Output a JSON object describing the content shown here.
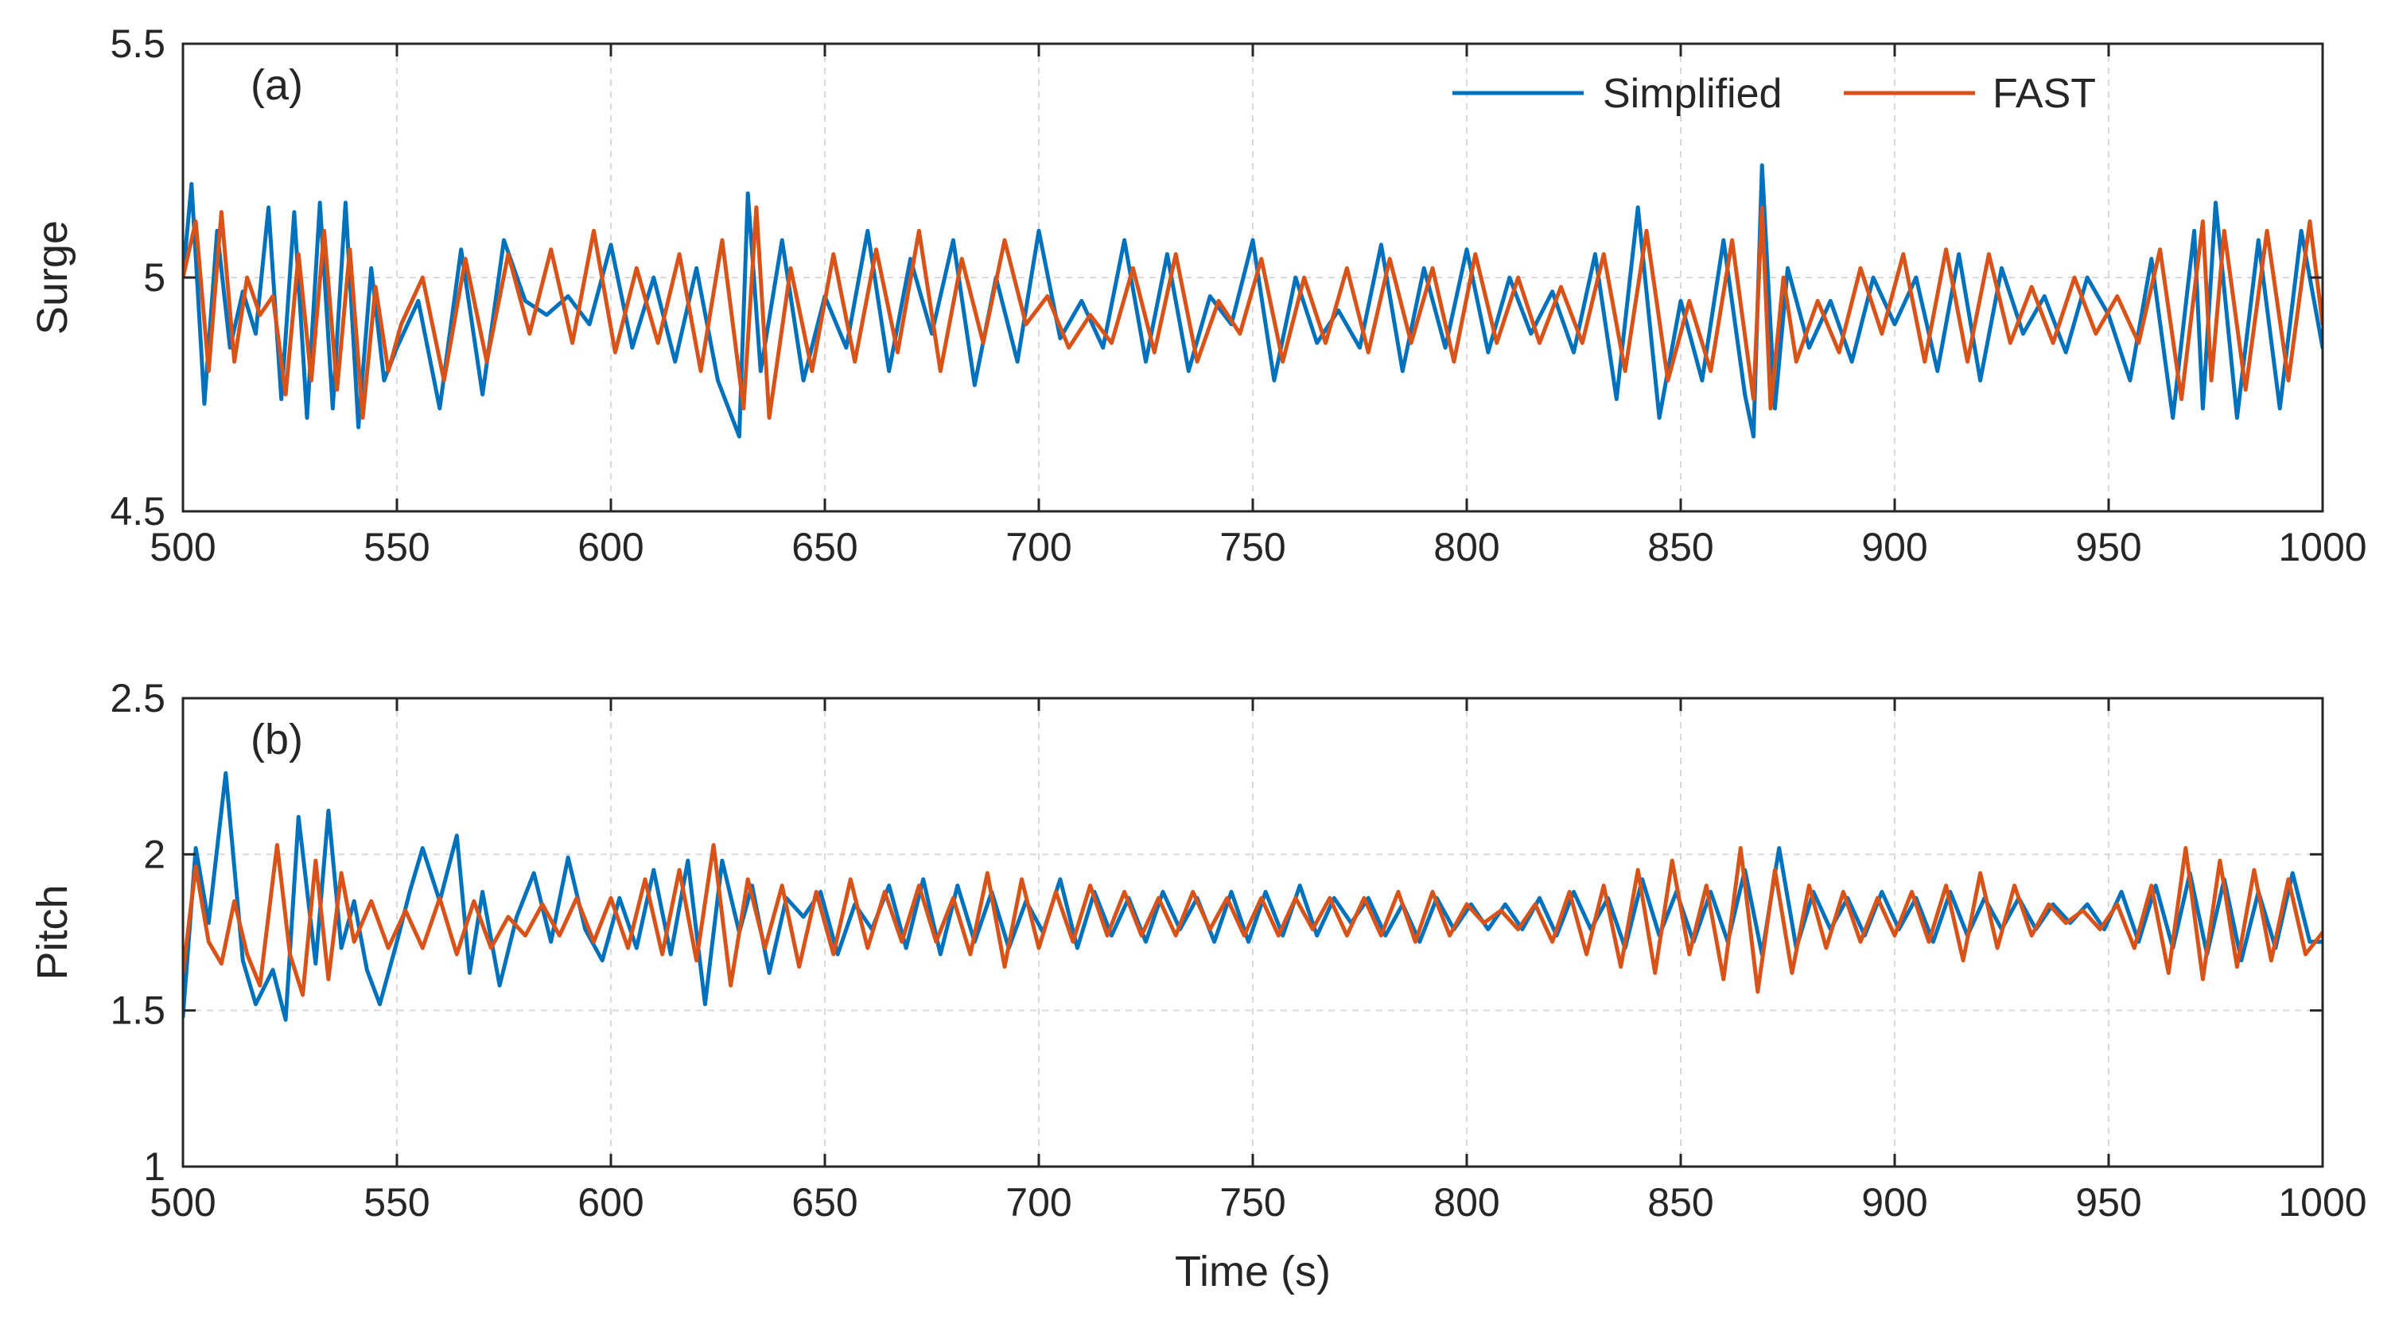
{
  "chart_data": [
    {
      "type": "line",
      "panel_label": "(a)",
      "xlabel": "",
      "ylabel": "Surge",
      "xlim": [
        500,
        1000
      ],
      "ylim": [
        4.5,
        5.5
      ],
      "xticks": [
        500,
        550,
        600,
        650,
        700,
        750,
        800,
        850,
        900,
        950,
        1000
      ],
      "yticks": [
        4.5,
        5,
        5.5
      ],
      "grid": true,
      "legend": {
        "position": "top-right",
        "orientation": "horizontal"
      },
      "series": [
        {
          "name": "Simplified",
          "color": "#0072BD",
          "x": [
            500,
            502,
            505,
            508,
            511,
            514,
            517,
            520,
            523,
            526,
            529,
            532,
            535,
            538,
            541,
            544,
            547,
            550,
            555,
            560,
            565,
            570,
            575,
            580,
            585,
            590,
            595,
            600,
            605,
            610,
            615,
            620,
            625,
            630,
            632,
            635,
            640,
            645,
            650,
            655,
            660,
            665,
            670,
            675,
            680,
            685,
            690,
            695,
            700,
            705,
            710,
            715,
            720,
            725,
            730,
            735,
            740,
            745,
            750,
            755,
            760,
            765,
            770,
            775,
            780,
            785,
            790,
            795,
            800,
            805,
            810,
            815,
            820,
            825,
            830,
            835,
            840,
            845,
            850,
            855,
            860,
            865,
            867,
            869,
            872,
            875,
            880,
            885,
            890,
            895,
            900,
            905,
            910,
            915,
            920,
            925,
            930,
            935,
            940,
            945,
            950,
            955,
            960,
            965,
            970,
            972,
            975,
            980,
            985,
            990,
            995,
            1000
          ],
          "values": [
            5.0,
            5.2,
            4.73,
            5.1,
            4.85,
            4.97,
            4.88,
            5.15,
            4.74,
            5.14,
            4.7,
            5.16,
            4.72,
            5.16,
            4.68,
            5.02,
            4.78,
            4.85,
            4.95,
            4.72,
            5.06,
            4.75,
            5.08,
            4.95,
            4.92,
            4.96,
            4.9,
            5.07,
            4.85,
            5.0,
            4.82,
            5.02,
            4.78,
            4.66,
            5.18,
            4.8,
            5.08,
            4.78,
            4.96,
            4.85,
            5.1,
            4.8,
            5.04,
            4.88,
            5.08,
            4.77,
            5.0,
            4.82,
            5.1,
            4.87,
            4.95,
            4.85,
            5.08,
            4.82,
            5.05,
            4.8,
            4.96,
            4.9,
            5.08,
            4.78,
            5.0,
            4.86,
            4.93,
            4.85,
            5.07,
            4.8,
            5.02,
            4.85,
            5.06,
            4.84,
            5.0,
            4.88,
            4.97,
            4.84,
            5.05,
            4.74,
            5.15,
            4.7,
            4.95,
            4.78,
            5.08,
            4.75,
            4.66,
            5.24,
            4.72,
            5.02,
            4.85,
            4.95,
            4.82,
            5.0,
            4.9,
            5.0,
            4.8,
            5.05,
            4.78,
            5.02,
            4.88,
            4.96,
            4.84,
            5.0,
            4.92,
            4.78,
            5.04,
            4.7,
            5.1,
            4.72,
            5.16,
            4.7,
            5.08,
            4.72,
            5.1,
            4.85
          ]
        },
        {
          "name": "FAST",
          "color": "#D95319",
          "x": [
            500,
            503,
            506,
            509,
            512,
            515,
            518,
            521,
            524,
            527,
            530,
            533,
            536,
            539,
            542,
            545,
            548,
            551,
            556,
            561,
            566,
            571,
            576,
            581,
            586,
            591,
            596,
            601,
            606,
            611,
            616,
            621,
            626,
            631,
            634,
            637,
            642,
            647,
            652,
            657,
            662,
            667,
            672,
            677,
            682,
            687,
            692,
            697,
            702,
            707,
            712,
            717,
            722,
            727,
            732,
            737,
            742,
            747,
            752,
            757,
            762,
            767,
            772,
            777,
            782,
            787,
            792,
            797,
            802,
            807,
            812,
            817,
            822,
            827,
            832,
            837,
            842,
            847,
            852,
            857,
            862,
            867,
            869,
            871,
            874,
            877,
            882,
            887,
            892,
            897,
            902,
            907,
            912,
            917,
            922,
            927,
            932,
            937,
            942,
            947,
            952,
            957,
            962,
            967,
            972,
            974,
            977,
            982,
            987,
            992,
            997,
            1000
          ],
          "values": [
            5.0,
            5.12,
            4.8,
            5.14,
            4.82,
            5.0,
            4.92,
            4.96,
            4.75,
            5.05,
            4.78,
            5.1,
            4.76,
            5.06,
            4.7,
            4.98,
            4.8,
            4.9,
            5.0,
            4.78,
            5.04,
            4.82,
            5.05,
            4.88,
            5.06,
            4.86,
            5.1,
            4.84,
            5.02,
            4.86,
            5.05,
            4.8,
            5.08,
            4.72,
            5.15,
            4.7,
            5.02,
            4.8,
            5.05,
            4.82,
            5.06,
            4.84,
            5.1,
            4.8,
            5.04,
            4.86,
            5.08,
            4.9,
            4.96,
            4.85,
            4.92,
            4.86,
            5.02,
            4.84,
            5.05,
            4.82,
            4.95,
            4.88,
            5.04,
            4.82,
            5.0,
            4.86,
            5.02,
            4.84,
            5.04,
            4.86,
            5.02,
            4.82,
            5.05,
            4.86,
            5.0,
            4.86,
            4.98,
            4.86,
            5.05,
            4.8,
            5.1,
            4.78,
            4.95,
            4.8,
            5.08,
            4.74,
            5.15,
            4.72,
            5.0,
            4.82,
            4.95,
            4.84,
            5.02,
            4.88,
            5.05,
            4.82,
            5.06,
            4.82,
            5.05,
            4.86,
            4.98,
            4.86,
            5.0,
            4.88,
            4.96,
            4.86,
            5.06,
            4.74,
            5.12,
            4.78,
            5.1,
            4.76,
            5.1,
            4.78,
            5.12,
            4.9
          ]
        }
      ]
    },
    {
      "type": "line",
      "panel_label": "(b)",
      "xlabel": "Time (s)",
      "ylabel": "Pitch",
      "xlim": [
        500,
        1000
      ],
      "ylim": [
        1,
        2.5
      ],
      "xticks": [
        500,
        550,
        600,
        650,
        700,
        750,
        800,
        850,
        900,
        950,
        1000
      ],
      "yticks": [
        1,
        1.5,
        2,
        2.5
      ],
      "grid": true,
      "series": [
        {
          "name": "Simplified",
          "color": "#0072BD",
          "x": [
            500,
            503,
            506,
            510,
            514,
            517,
            521,
            524,
            527,
            531,
            534,
            537,
            540,
            543,
            546,
            550,
            553,
            556,
            560,
            564,
            567,
            570,
            574,
            578,
            582,
            586,
            590,
            594,
            598,
            602,
            606,
            610,
            614,
            618,
            622,
            626,
            630,
            633,
            637,
            641,
            645,
            649,
            653,
            657,
            661,
            665,
            669,
            673,
            677,
            681,
            685,
            689,
            693,
            697,
            701,
            705,
            709,
            713,
            717,
            721,
            725,
            729,
            733,
            737,
            741,
            745,
            749,
            753,
            757,
            761,
            765,
            769,
            773,
            777,
            781,
            785,
            789,
            793,
            797,
            801,
            805,
            809,
            813,
            817,
            821,
            825,
            829,
            833,
            837,
            841,
            845,
            849,
            853,
            857,
            861,
            865,
            869,
            873,
            877,
            881,
            885,
            889,
            893,
            897,
            901,
            905,
            909,
            913,
            917,
            921,
            925,
            929,
            933,
            937,
            941,
            945,
            949,
            953,
            957,
            961,
            965,
            969,
            973,
            977,
            981,
            985,
            989,
            993,
            997,
            1000
          ],
          "values": [
            1.48,
            2.02,
            1.78,
            2.26,
            1.66,
            1.52,
            1.63,
            1.47,
            2.12,
            1.65,
            2.14,
            1.7,
            1.85,
            1.63,
            1.52,
            1.72,
            1.88,
            2.02,
            1.85,
            2.06,
            1.62,
            1.88,
            1.58,
            1.8,
            1.94,
            1.72,
            1.99,
            1.76,
            1.66,
            1.86,
            1.7,
            1.95,
            1.68,
            1.98,
            1.52,
            1.98,
            1.75,
            1.9,
            1.62,
            1.86,
            1.8,
            1.88,
            1.68,
            1.84,
            1.76,
            1.9,
            1.7,
            1.92,
            1.68,
            1.9,
            1.72,
            1.88,
            1.7,
            1.85,
            1.75,
            1.92,
            1.7,
            1.88,
            1.74,
            1.86,
            1.72,
            1.88,
            1.76,
            1.86,
            1.72,
            1.88,
            1.72,
            1.88,
            1.74,
            1.9,
            1.74,
            1.86,
            1.78,
            1.86,
            1.74,
            1.84,
            1.72,
            1.86,
            1.76,
            1.84,
            1.76,
            1.84,
            1.76,
            1.86,
            1.74,
            1.88,
            1.76,
            1.86,
            1.7,
            1.92,
            1.74,
            1.88,
            1.72,
            1.88,
            1.72,
            1.95,
            1.68,
            2.02,
            1.7,
            1.88,
            1.76,
            1.86,
            1.74,
            1.88,
            1.76,
            1.86,
            1.72,
            1.88,
            1.74,
            1.86,
            1.76,
            1.86,
            1.76,
            1.84,
            1.78,
            1.84,
            1.76,
            1.88,
            1.72,
            1.9,
            1.7,
            1.94,
            1.68,
            1.92,
            1.66,
            1.88,
            1.7,
            1.94,
            1.72,
            1.72
          ]
        },
        {
          "name": "FAST",
          "color": "#D95319",
          "x": [
            500,
            503,
            506,
            509,
            512,
            515,
            518,
            522,
            525,
            528,
            531,
            534,
            537,
            540,
            544,
            548,
            552,
            556,
            560,
            564,
            568,
            572,
            576,
            580,
            584,
            588,
            592,
            596,
            600,
            604,
            608,
            612,
            616,
            620,
            624,
            628,
            632,
            636,
            640,
            644,
            648,
            652,
            656,
            660,
            664,
            668,
            672,
            676,
            680,
            684,
            688,
            692,
            696,
            700,
            704,
            708,
            712,
            716,
            720,
            724,
            728,
            732,
            736,
            740,
            744,
            748,
            752,
            756,
            760,
            764,
            768,
            772,
            776,
            780,
            784,
            788,
            792,
            796,
            800,
            804,
            808,
            812,
            816,
            820,
            824,
            828,
            832,
            836,
            840,
            844,
            848,
            852,
            856,
            860,
            864,
            868,
            872,
            876,
            880,
            884,
            888,
            892,
            896,
            900,
            904,
            908,
            912,
            916,
            920,
            924,
            928,
            932,
            936,
            940,
            944,
            948,
            952,
            956,
            960,
            964,
            968,
            972,
            976,
            980,
            984,
            988,
            992,
            996,
            1000
          ],
          "values": [
            1.62,
            1.96,
            1.72,
            1.65,
            1.85,
            1.68,
            1.58,
            2.03,
            1.68,
            1.55,
            1.98,
            1.6,
            1.94,
            1.72,
            1.85,
            1.7,
            1.82,
            1.7,
            1.86,
            1.68,
            1.85,
            1.7,
            1.8,
            1.74,
            1.84,
            1.74,
            1.86,
            1.72,
            1.86,
            1.7,
            1.92,
            1.68,
            1.95,
            1.66,
            2.03,
            1.58,
            1.92,
            1.7,
            1.9,
            1.64,
            1.88,
            1.68,
            1.92,
            1.7,
            1.88,
            1.72,
            1.9,
            1.72,
            1.86,
            1.68,
            1.94,
            1.64,
            1.92,
            1.7,
            1.88,
            1.72,
            1.9,
            1.74,
            1.88,
            1.74,
            1.86,
            1.74,
            1.88,
            1.76,
            1.86,
            1.74,
            1.86,
            1.74,
            1.86,
            1.76,
            1.86,
            1.74,
            1.86,
            1.74,
            1.88,
            1.72,
            1.88,
            1.74,
            1.84,
            1.78,
            1.82,
            1.76,
            1.84,
            1.72,
            1.88,
            1.68,
            1.9,
            1.64,
            1.95,
            1.62,
            1.98,
            1.68,
            1.9,
            1.6,
            2.02,
            1.56,
            1.95,
            1.62,
            1.9,
            1.7,
            1.88,
            1.72,
            1.86,
            1.74,
            1.88,
            1.72,
            1.9,
            1.66,
            1.94,
            1.7,
            1.9,
            1.74,
            1.84,
            1.78,
            1.82,
            1.76,
            1.84,
            1.7,
            1.9,
            1.62,
            2.02,
            1.6,
            1.98,
            1.64,
            1.95,
            1.66,
            1.92,
            1.68,
            1.75
          ]
        }
      ]
    }
  ]
}
